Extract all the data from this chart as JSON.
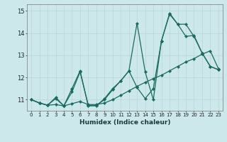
{
  "xlabel": "Humidex (Indice chaleur)",
  "ylabel": "",
  "xlim": [
    -0.5,
    23.5
  ],
  "ylim": [
    10.5,
    15.3
  ],
  "yticks": [
    11,
    12,
    13,
    14,
    15
  ],
  "xticks": [
    0,
    1,
    2,
    3,
    4,
    5,
    6,
    7,
    8,
    9,
    10,
    11,
    12,
    13,
    14,
    15,
    16,
    17,
    18,
    19,
    20,
    21,
    22,
    23
  ],
  "bg_color": "#cde8ea",
  "grid_color": "#b8d5d8",
  "line_color": "#1a6b5e",
  "lineA_x": [
    0,
    1,
    2,
    3,
    4,
    5,
    6,
    7,
    8,
    9,
    10,
    11,
    12,
    13,
    14,
    15,
    16,
    17,
    18,
    19,
    20,
    21,
    22,
    23
  ],
  "lineA_y": [
    11.0,
    10.85,
    10.75,
    11.05,
    10.72,
    11.35,
    12.25,
    10.75,
    10.75,
    11.0,
    11.45,
    11.85,
    12.3,
    11.55,
    11.05,
    11.5,
    13.65,
    14.9,
    14.4,
    13.85,
    13.9,
    13.1,
    12.5,
    12.35
  ],
  "lineB_x": [
    0,
    1,
    2,
    3,
    4,
    5,
    6,
    7,
    8,
    9,
    10,
    11,
    12,
    13,
    14,
    15,
    16,
    17,
    18,
    19,
    20,
    21,
    22,
    23
  ],
  "lineB_y": [
    11.0,
    10.85,
    10.75,
    11.1,
    10.72,
    11.5,
    12.3,
    10.72,
    10.72,
    11.05,
    11.5,
    11.85,
    12.3,
    14.45,
    12.25,
    11.0,
    13.65,
    14.85,
    14.4,
    14.4,
    13.85,
    13.1,
    12.5,
    12.35
  ],
  "lineC_x": [
    0,
    1,
    2,
    3,
    4,
    5,
    6,
    7,
    8,
    9,
    10,
    11,
    12,
    13,
    14,
    15,
    16,
    17,
    18,
    19,
    20,
    21,
    22,
    23
  ],
  "lineC_y": [
    11.0,
    10.85,
    10.75,
    10.78,
    10.72,
    10.82,
    10.92,
    10.78,
    10.78,
    10.85,
    11.0,
    11.2,
    11.4,
    11.6,
    11.78,
    11.95,
    12.1,
    12.3,
    12.5,
    12.7,
    12.85,
    13.05,
    13.2,
    12.4
  ]
}
